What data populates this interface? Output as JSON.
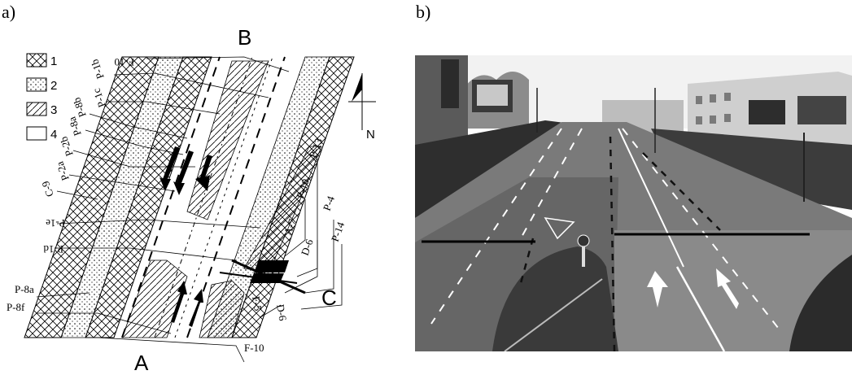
{
  "panels": {
    "a": {
      "label": "a)"
    },
    "b": {
      "label": "b)"
    }
  },
  "legend": [
    {
      "key": "1",
      "pattern": "crosshatch"
    },
    {
      "key": "2",
      "pattern": "dots"
    },
    {
      "key": "3",
      "pattern": "diagonal"
    },
    {
      "key": "4",
      "pattern": "blank"
    }
  ],
  "compass": {
    "label": "N"
  },
  "points": {
    "A": "A",
    "B": "B",
    "C": "C"
  },
  "map_labels": {
    "f10_top": "F-10",
    "p1b": "P-1b",
    "p1c": "P-1c",
    "p8b": "P-8b",
    "p8a_left": "P-8a",
    "p2b": "P-2b",
    "p2a": "P-2a",
    "c9": "C-9",
    "p1e": "P-1e",
    "p1d": "P-1d",
    "p8a_bottom": "P-8a",
    "p8f": "P-8f",
    "p13": "P-13",
    "p10": "P-10",
    "a7": "A-7",
    "p4": "P-4",
    "p14": "P-14",
    "d6_right": "D-6",
    "f5": "F-5",
    "d6_bottom": "D-6",
    "f10_bottom": "F-10"
  },
  "colors": {
    "ink": "#000000",
    "sky": "#f2f2f2",
    "asphalt": "#6e6e6e",
    "asphalt_light": "#8a8a8a",
    "grass": "#3a3a3a"
  }
}
